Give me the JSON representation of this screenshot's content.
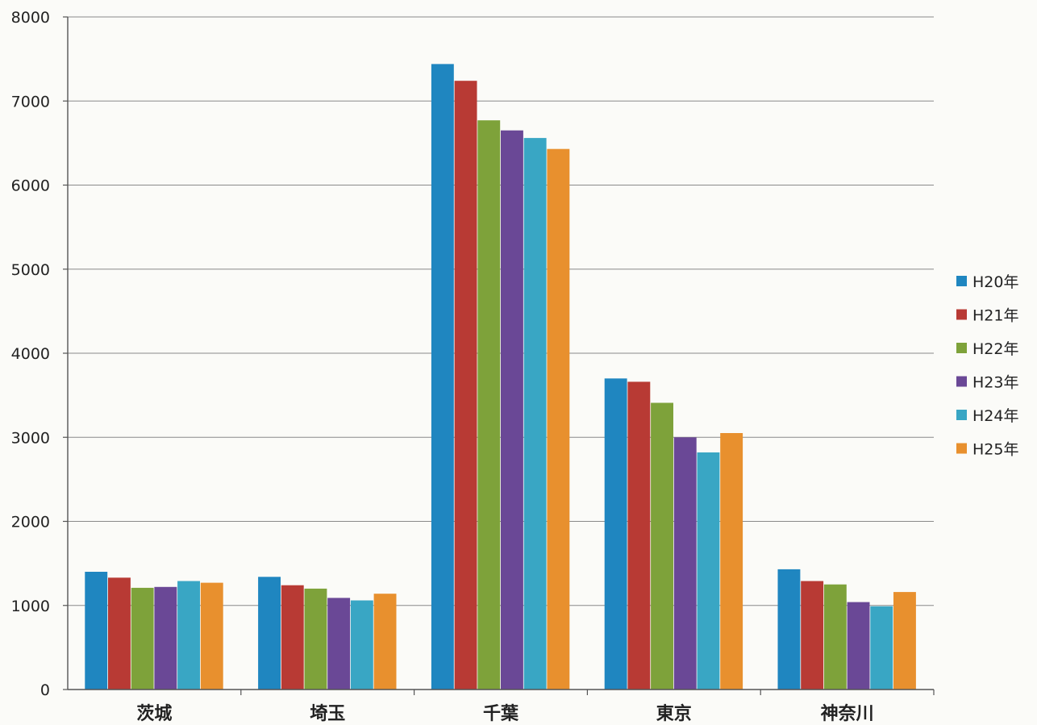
{
  "chart_data": {
    "type": "bar",
    "categories": [
      "茨城",
      "埼玉",
      "千葉",
      "東京",
      "神奈川"
    ],
    "series": [
      {
        "name": "H20年",
        "color": "#1f86c0",
        "values": [
          1400,
          1340,
          7440,
          3700,
          1430
        ]
      },
      {
        "name": "H21年",
        "color": "#b83a34",
        "values": [
          1330,
          1240,
          7240,
          3660,
          1290
        ]
      },
      {
        "name": "H22年",
        "color": "#7ea23a",
        "values": [
          1210,
          1200,
          6770,
          3410,
          1250
        ]
      },
      {
        "name": "H23年",
        "color": "#6a4896",
        "values": [
          1220,
          1090,
          6650,
          3000,
          1040
        ]
      },
      {
        "name": "H24年",
        "color": "#39a6c4",
        "values": [
          1290,
          1060,
          6560,
          2820,
          990
        ]
      },
      {
        "name": "H25年",
        "color": "#e8902e",
        "values": [
          1270,
          1140,
          6430,
          3050,
          1160
        ]
      }
    ],
    "y_ticks": [
      "0",
      "1000",
      "2000",
      "3000",
      "4000",
      "5000",
      "6000",
      "7000",
      "8000"
    ],
    "ylim": [
      0,
      8000
    ],
    "grid": true,
    "legend_position": "right",
    "title": "",
    "xlabel": "",
    "ylabel": ""
  }
}
